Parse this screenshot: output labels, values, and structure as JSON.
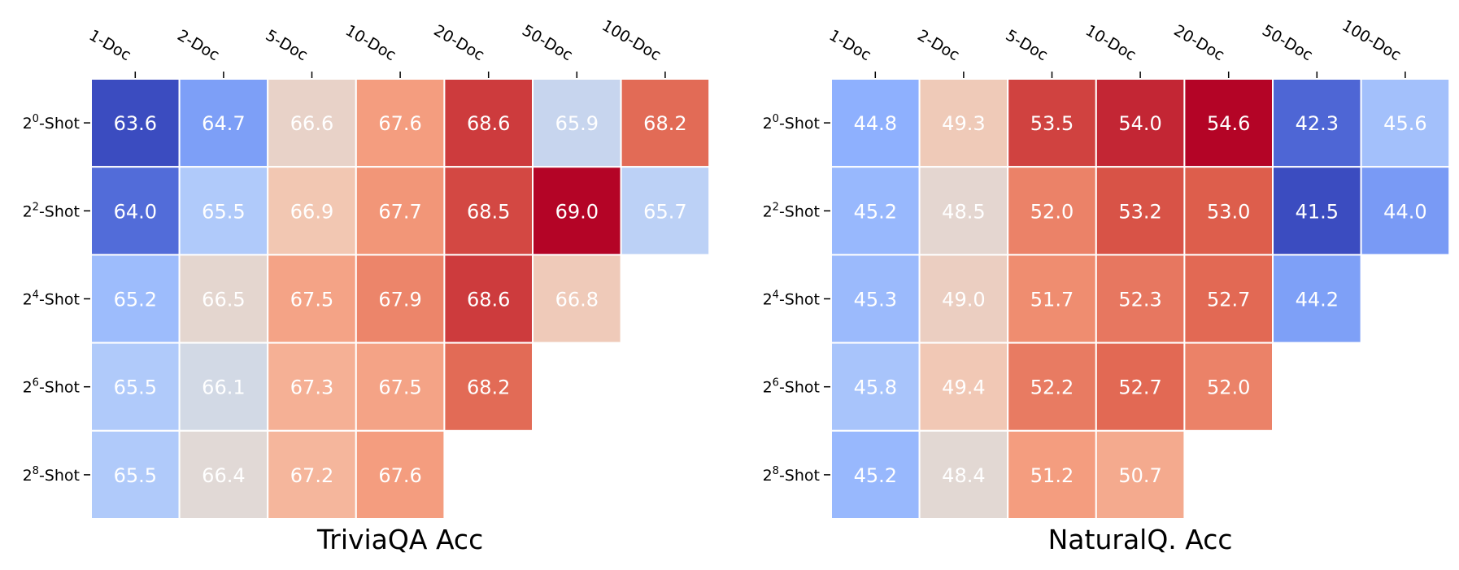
{
  "chart_data": [
    {
      "type": "heatmap",
      "title": "TriviaQA Acc",
      "x_categories": [
        "1-Doc",
        "2-Doc",
        "5-Doc",
        "10-Doc",
        "20-Doc",
        "50-Doc",
        "100-Doc"
      ],
      "y_categories": [
        {
          "base": "2",
          "exp": "0",
          "suffix": "-Shot"
        },
        {
          "base": "2",
          "exp": "2",
          "suffix": "-Shot"
        },
        {
          "base": "2",
          "exp": "4",
          "suffix": "-Shot"
        },
        {
          "base": "2",
          "exp": "6",
          "suffix": "-Shot"
        },
        {
          "base": "2",
          "exp": "8",
          "suffix": "-Shot"
        }
      ],
      "values": [
        [
          63.6,
          64.7,
          66.6,
          67.6,
          68.6,
          65.9,
          68.2
        ],
        [
          64.0,
          65.5,
          66.9,
          67.7,
          68.5,
          69.0,
          65.7
        ],
        [
          65.2,
          66.5,
          67.5,
          67.9,
          68.6,
          66.8,
          null
        ],
        [
          65.5,
          66.1,
          67.3,
          67.5,
          68.2,
          null,
          null
        ],
        [
          65.5,
          66.4,
          67.2,
          67.6,
          null,
          null,
          null
        ]
      ],
      "vmin": 63.6,
      "vmax": 69.0,
      "colormap": "coolwarm"
    },
    {
      "type": "heatmap",
      "title": "NaturalQ. Acc",
      "x_categories": [
        "1-Doc",
        "2-Doc",
        "5-Doc",
        "10-Doc",
        "20-Doc",
        "50-Doc",
        "100-Doc"
      ],
      "y_categories": [
        {
          "base": "2",
          "exp": "0",
          "suffix": "-Shot"
        },
        {
          "base": "2",
          "exp": "2",
          "suffix": "-Shot"
        },
        {
          "base": "2",
          "exp": "4",
          "suffix": "-Shot"
        },
        {
          "base": "2",
          "exp": "6",
          "suffix": "-Shot"
        },
        {
          "base": "2",
          "exp": "8",
          "suffix": "-Shot"
        }
      ],
      "values": [
        [
          44.8,
          49.3,
          53.5,
          54.0,
          54.6,
          42.3,
          45.6
        ],
        [
          45.2,
          48.5,
          52.0,
          53.2,
          53.0,
          41.5,
          44.0
        ],
        [
          45.3,
          49.0,
          51.7,
          52.3,
          52.7,
          44.2,
          null
        ],
        [
          45.8,
          49.4,
          52.2,
          52.7,
          52.0,
          null,
          null
        ],
        [
          45.2,
          48.4,
          51.2,
          50.7,
          null,
          null,
          null
        ]
      ],
      "vmin": 41.5,
      "vmax": 54.6,
      "colormap": "coolwarm"
    }
  ]
}
